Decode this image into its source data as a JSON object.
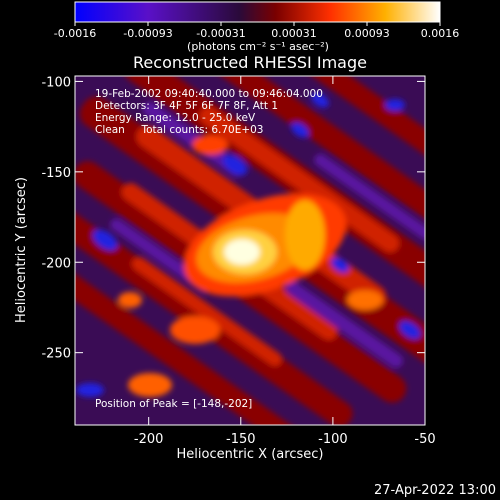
{
  "chart_data": {
    "type": "heatmap",
    "title": "Reconstructed RHESSI Image",
    "xlabel": "Heliocentric X (arcsec)",
    "ylabel": "Heliocentric Y (arcsec)",
    "xlim": [
      -240,
      -50
    ],
    "ylim": [
      -290,
      -97
    ],
    "xticks": [
      -200,
      -150,
      -100,
      -50
    ],
    "yticks": [
      -100,
      -150,
      -200,
      -250
    ],
    "colorbar": {
      "range": [
        -0.0016,
        0.0016
      ],
      "ticks": [
        "-0.0016",
        "-0.00093",
        "-0.00031",
        "0.00031",
        "0.00093",
        "0.0016"
      ],
      "unit_label": "(photons cm⁻² s⁻¹ asec⁻²)",
      "colors": [
        "#0000ff",
        "#5a10c8",
        "#2a0a3a",
        "#7a0000",
        "#ff3000",
        "#ffb000",
        "#ffffff"
      ]
    },
    "annotations": [
      "19-Feb-2002 09:40:40.000 to 09:46:04.000",
      "Detectors: 3F 4F 5F 6F 7F 8F, Att 1",
      "Energy Range: 12.0 - 25.0 keV",
      "Clean     Total counts: 6.70E+03"
    ],
    "peak_text": "Position of Peak = [-148,-202]",
    "peak": {
      "x": -148,
      "y": -202
    }
  },
  "footer": {
    "timestamp": "27-Apr-2022 13:00"
  }
}
